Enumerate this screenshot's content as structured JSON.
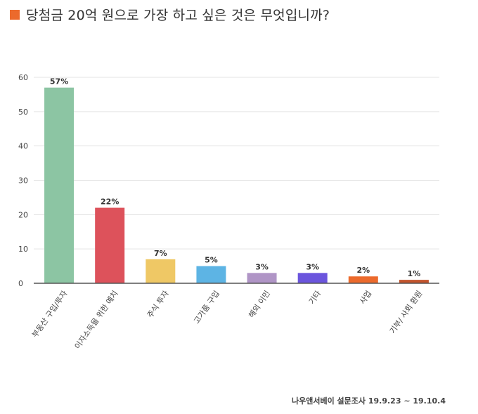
{
  "title": "당첨금 20억 원으로 가장 하고 싶은 것은 무엇입니까?",
  "accent_color": "#ec6a2c",
  "source": "나우앤서베이 설문조사 19.9.23 ~ 19.10.4",
  "chart_data": {
    "type": "bar",
    "categories": [
      "부동산 구입/투자",
      "이자소득을 위한 예치",
      "주식 투자",
      "고가품 구입",
      "해외 이민",
      "기타",
      "사업",
      "기부/ 사회 환원"
    ],
    "values": [
      57,
      22,
      7,
      5,
      3,
      3,
      2,
      1
    ],
    "value_labels": [
      "57%",
      "22%",
      "7%",
      "5%",
      "3%",
      "3%",
      "2%",
      "1%"
    ],
    "colors": [
      "#8cc5a3",
      "#dd525b",
      "#efc865",
      "#5db4e4",
      "#b095c6",
      "#6b55dd",
      "#ec6a2c",
      "#c2542d"
    ],
    "ylim": [
      0,
      60
    ],
    "yticks": [
      0,
      10,
      20,
      30,
      40,
      50,
      60
    ],
    "grid": true
  }
}
